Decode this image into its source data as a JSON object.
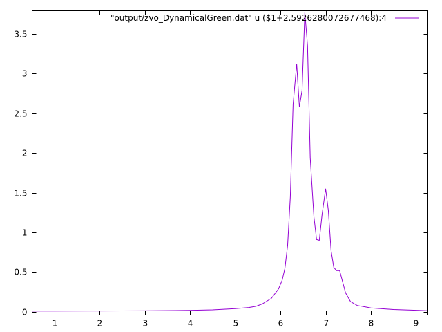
{
  "chart_data": {
    "type": "line",
    "title": "",
    "xlabel": "",
    "ylabel": "",
    "xlim": [
      0.51,
      9.26
    ],
    "ylim": [
      -0.04,
      3.79
    ],
    "xticks": [
      1,
      2,
      3,
      4,
      5,
      6,
      7,
      8,
      9
    ],
    "yticks": [
      0,
      0.5,
      1,
      1.5,
      2,
      2.5,
      3,
      3.5
    ],
    "xtick_labels": [
      "1",
      "2",
      "3",
      "4",
      "5",
      "6",
      "7",
      "8",
      "9"
    ],
    "ytick_labels": [
      "0",
      "0.5",
      "1",
      "1.5",
      "2",
      "2.5",
      "3",
      "3.5"
    ],
    "grid": false,
    "legend_placement": "top-right",
    "series": [
      {
        "name": "\"output/zvo_DynamicalGreen.dat\" u ($1+2.5926280072677468):4",
        "color": "#9400d3",
        "x": [
          0.51,
          1,
          2,
          3,
          4,
          4.5,
          5,
          5.3,
          5.46,
          5.6,
          5.8,
          5.96,
          6.04,
          6.1,
          6.16,
          6.22,
          6.28,
          6.36,
          6.42,
          6.48,
          6.54,
          6.6,
          6.66,
          6.74,
          6.8,
          6.86,
          6.92,
          7.0,
          7.06,
          7.12,
          7.18,
          7.24,
          7.31,
          7.44,
          7.55,
          7.7,
          7.9,
          8.0,
          8.5,
          9.0,
          9.26
        ],
        "y": [
          0.01,
          0.01,
          0.011,
          0.013,
          0.018,
          0.025,
          0.04,
          0.055,
          0.07,
          0.1,
          0.17,
          0.29,
          0.4,
          0.55,
          0.84,
          1.45,
          2.61,
          3.12,
          2.58,
          2.79,
          3.77,
          3.35,
          1.94,
          1.2,
          0.91,
          0.9,
          1.22,
          1.55,
          1.28,
          0.77,
          0.56,
          0.52,
          0.52,
          0.24,
          0.13,
          0.08,
          0.06,
          0.05,
          0.03,
          0.02,
          0.015
        ]
      }
    ]
  }
}
